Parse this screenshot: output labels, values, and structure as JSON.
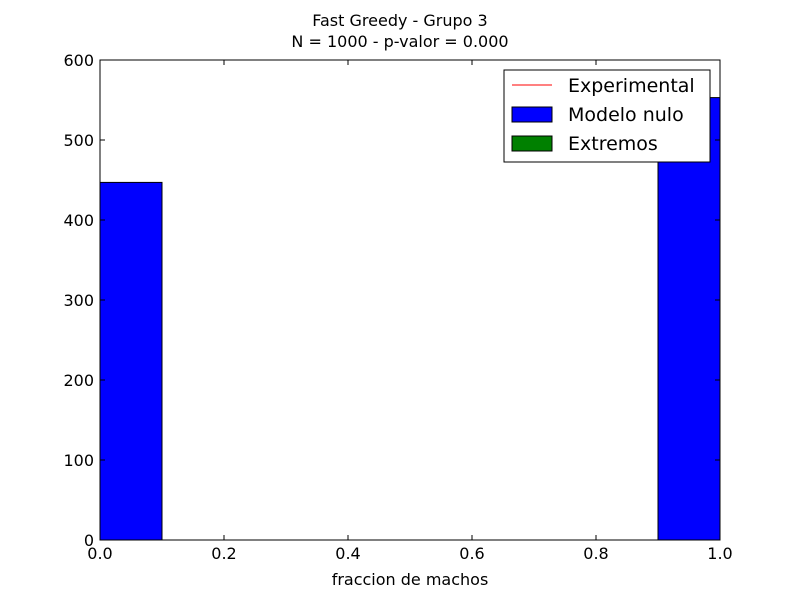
{
  "chart_data": {
    "type": "bar",
    "title": "Fast Greedy - Grupo 3",
    "subtitle": "N = 1000 - p-valor = 0.000",
    "xlabel": "fraccion de machos",
    "ylabel": "",
    "xlim": [
      0.0,
      1.0
    ],
    "ylim": [
      0,
      600
    ],
    "xticks": [
      "0.0",
      "0.2",
      "0.4",
      "0.6",
      "0.8",
      "1.0"
    ],
    "yticks": [
      "0",
      "100",
      "200",
      "300",
      "400",
      "500",
      "600"
    ],
    "grid": false,
    "legend_position": "top-right",
    "series": [
      {
        "name": "Modelo nulo",
        "color": "#0000ff",
        "bins": [
          {
            "x0": 0.0,
            "x1": 0.1,
            "value": 447
          },
          {
            "x0": 0.9,
            "x1": 1.0,
            "value": 553
          }
        ]
      }
    ],
    "legend": [
      {
        "label": "Experimental",
        "kind": "line",
        "color": "#ff0000"
      },
      {
        "label": "Modelo nulo",
        "kind": "patch",
        "color": "#0000ff"
      },
      {
        "label": "Extremos",
        "kind": "patch",
        "color": "#008000"
      }
    ]
  }
}
